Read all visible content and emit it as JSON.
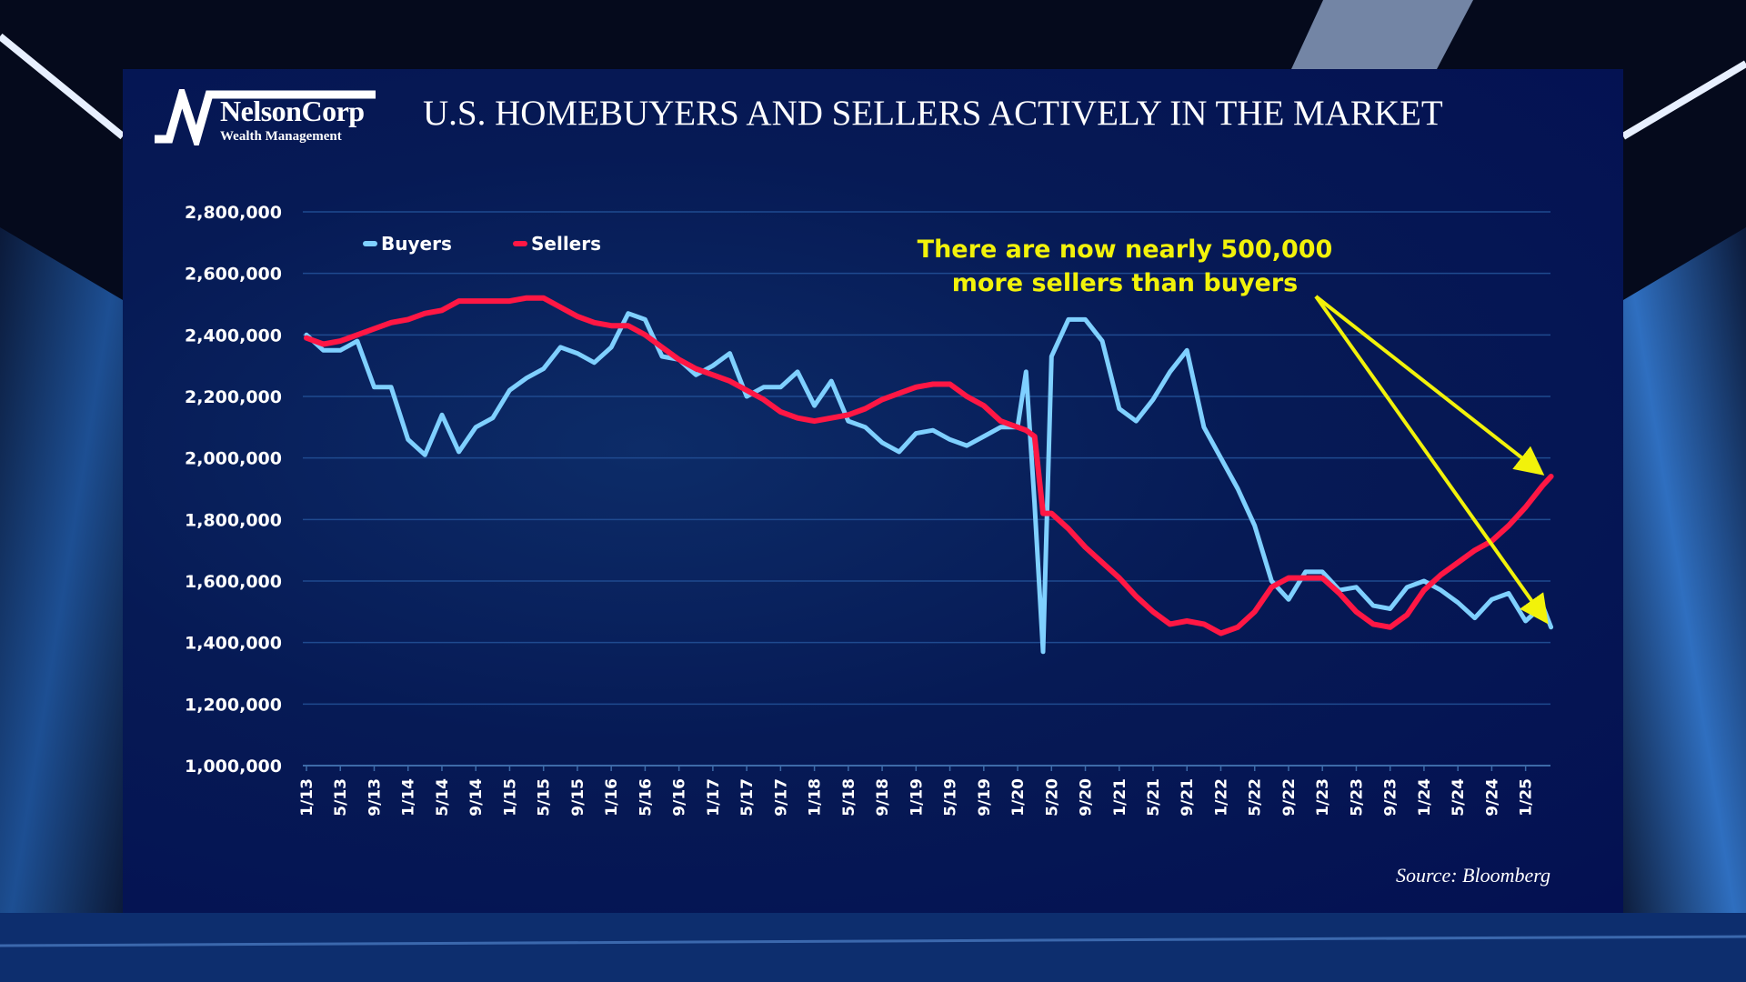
{
  "header": {
    "logo_name": "NelsonCorp",
    "logo_sub": "Wealth Management",
    "title": "U.S. HOMEBUYERS AND SELLERS ACTIVELY IN THE MARKET"
  },
  "annotation": {
    "line1": "There are now nearly 500,000",
    "line2": "more sellers than buyers"
  },
  "source": "Source: Bloomberg",
  "colors": {
    "buyers": "#7fd0ff",
    "sellers": "#ff1744",
    "annotation": "#f2f20a"
  },
  "chart_data": {
    "type": "line",
    "title": "U.S. HOMEBUYERS AND SELLERS ACTIVELY IN THE MARKET",
    "xlabel": "",
    "ylabel": "",
    "ylim": [
      1000000,
      2800000
    ],
    "yticks": [
      "1,000,000",
      "1,200,000",
      "1,400,000",
      "1,600,000",
      "1,800,000",
      "2,000,000",
      "2,200,000",
      "2,400,000",
      "2,600,000",
      "2,800,000"
    ],
    "xticks": [
      "1/13",
      "5/13",
      "9/13",
      "1/14",
      "5/14",
      "9/14",
      "1/15",
      "5/15",
      "9/15",
      "1/16",
      "5/16",
      "9/16",
      "1/17",
      "5/17",
      "9/17",
      "1/18",
      "5/18",
      "9/18",
      "1/19",
      "5/19",
      "9/19",
      "1/20",
      "5/20",
      "9/20",
      "1/21",
      "5/21",
      "9/21",
      "1/22",
      "5/22",
      "9/22",
      "1/23",
      "5/23",
      "9/23",
      "1/24",
      "5/24",
      "9/24",
      "1/25"
    ],
    "grid": true,
    "legend": {
      "position": "top-left",
      "entries": [
        "Buyers",
        "Sellers"
      ]
    },
    "x": [
      "2013-01",
      "2013-03",
      "2013-05",
      "2013-07",
      "2013-09",
      "2013-11",
      "2014-01",
      "2014-03",
      "2014-05",
      "2014-07",
      "2014-09",
      "2014-11",
      "2015-01",
      "2015-03",
      "2015-05",
      "2015-07",
      "2015-09",
      "2015-11",
      "2016-01",
      "2016-03",
      "2016-05",
      "2016-07",
      "2016-09",
      "2016-11",
      "2017-01",
      "2017-03",
      "2017-05",
      "2017-07",
      "2017-09",
      "2017-11",
      "2018-01",
      "2018-03",
      "2018-05",
      "2018-07",
      "2018-09",
      "2018-11",
      "2019-01",
      "2019-03",
      "2019-05",
      "2019-07",
      "2019-09",
      "2019-11",
      "2020-01",
      "2020-02",
      "2020-03",
      "2020-04",
      "2020-05",
      "2020-07",
      "2020-09",
      "2020-11",
      "2021-01",
      "2021-03",
      "2021-05",
      "2021-07",
      "2021-09",
      "2021-11",
      "2022-01",
      "2022-03",
      "2022-05",
      "2022-07",
      "2022-09",
      "2022-11",
      "2023-01",
      "2023-03",
      "2023-05",
      "2023-07",
      "2023-09",
      "2023-11",
      "2024-01",
      "2024-03",
      "2024-05",
      "2024-07",
      "2024-09",
      "2024-11",
      "2025-01",
      "2025-03",
      "2025-04"
    ],
    "series": [
      {
        "name": "Buyers",
        "values": [
          2400000,
          2350000,
          2350000,
          2380000,
          2230000,
          2230000,
          2060000,
          2010000,
          2140000,
          2020000,
          2100000,
          2130000,
          2220000,
          2260000,
          2290000,
          2360000,
          2340000,
          2310000,
          2360000,
          2470000,
          2450000,
          2330000,
          2320000,
          2270000,
          2300000,
          2340000,
          2200000,
          2230000,
          2230000,
          2280000,
          2170000,
          2250000,
          2120000,
          2100000,
          2050000,
          2020000,
          2080000,
          2090000,
          2060000,
          2040000,
          2070000,
          2100000,
          2100000,
          2280000,
          1850000,
          1370000,
          2330000,
          2450000,
          2450000,
          2380000,
          2160000,
          2120000,
          2190000,
          2280000,
          2350000,
          2100000,
          2000000,
          1900000,
          1780000,
          1600000,
          1540000,
          1630000,
          1630000,
          1570000,
          1580000,
          1520000,
          1510000,
          1580000,
          1600000,
          1570000,
          1530000,
          1480000,
          1540000,
          1560000,
          1470000,
          1520000,
          1450000
        ]
      },
      {
        "name": "Sellers",
        "values": [
          2390000,
          2370000,
          2380000,
          2400000,
          2420000,
          2440000,
          2450000,
          2470000,
          2480000,
          2510000,
          2510000,
          2510000,
          2510000,
          2520000,
          2520000,
          2490000,
          2460000,
          2440000,
          2430000,
          2430000,
          2400000,
          2360000,
          2320000,
          2290000,
          2270000,
          2250000,
          2220000,
          2190000,
          2150000,
          2130000,
          2120000,
          2130000,
          2140000,
          2160000,
          2190000,
          2210000,
          2230000,
          2240000,
          2240000,
          2200000,
          2170000,
          2120000,
          2100000,
          2090000,
          2070000,
          1820000,
          1820000,
          1770000,
          1710000,
          1660000,
          1610000,
          1550000,
          1500000,
          1460000,
          1470000,
          1460000,
          1430000,
          1450000,
          1500000,
          1580000,
          1610000,
          1610000,
          1610000,
          1560000,
          1500000,
          1460000,
          1450000,
          1490000,
          1570000,
          1620000,
          1660000,
          1700000,
          1730000,
          1780000,
          1840000,
          1910000,
          1940000
        ]
      }
    ]
  }
}
